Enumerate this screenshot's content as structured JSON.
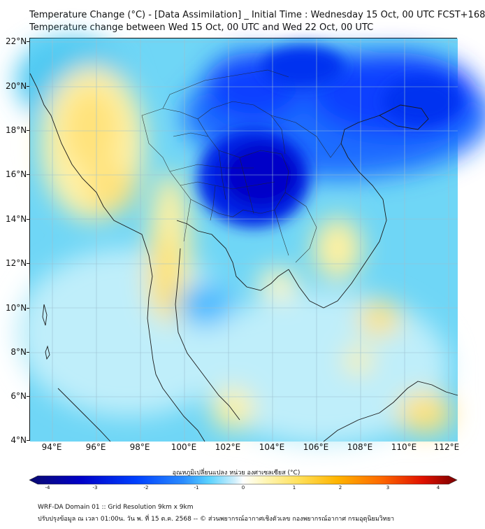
{
  "title": {
    "line1": "Temperature Change (°C) - [Data Assimilation] _ Initial Time : Wednesday 15 Oct, 00 UTC FCST+168",
    "line2": "Temperature change between Wed 15 Oct, 00 UTC and Wed 22 Oct, 00 UTC"
  },
  "axes": {
    "lat_labels": [
      "22°N",
      "20°N",
      "18°N",
      "16°N",
      "14°N",
      "12°N",
      "10°N",
      "8°N",
      "6°N",
      "4°N"
    ],
    "lon_labels": [
      "94°E",
      "96°E",
      "98°E",
      "100°E",
      "102°E",
      "104°E",
      "106°E",
      "108°E",
      "110°E",
      "112°E"
    ],
    "lat_range": [
      4,
      22.2
    ],
    "lon_range": [
      93,
      112.5
    ]
  },
  "colorbar": {
    "title": "อุณหภูมิเปลี่ยนแปลง หน่วย องศาเซลเซียส (°C)",
    "ticks": [
      "-4",
      "-3",
      "-2",
      "-1",
      "0",
      "1",
      "2",
      "3",
      "4"
    ],
    "range": [
      -4,
      4
    ],
    "colors": [
      "#0a0a6e",
      "#0000c8",
      "#0040ff",
      "#2a8cff",
      "#5ad2ff",
      "#cfeffc",
      "#ffffff",
      "#fff6b8",
      "#ffe05a",
      "#ffb400",
      "#ff6a00",
      "#e01000",
      "#7a0000"
    ]
  },
  "footer": {
    "line1": "WRF-DA Domain 01 :: Grid Resolution 9km x 9km",
    "line2": "ปรับปรุงข้อมูล ณ เวลา 01:00น. วัน พ. ที่ 15 ต.ค. 2568 -- © ส่วนพยากรณ์อากาศเชิงตัวเลข กองพยากรณ์อากาศ กรมอุตุนิยมวิทยา"
  }
}
